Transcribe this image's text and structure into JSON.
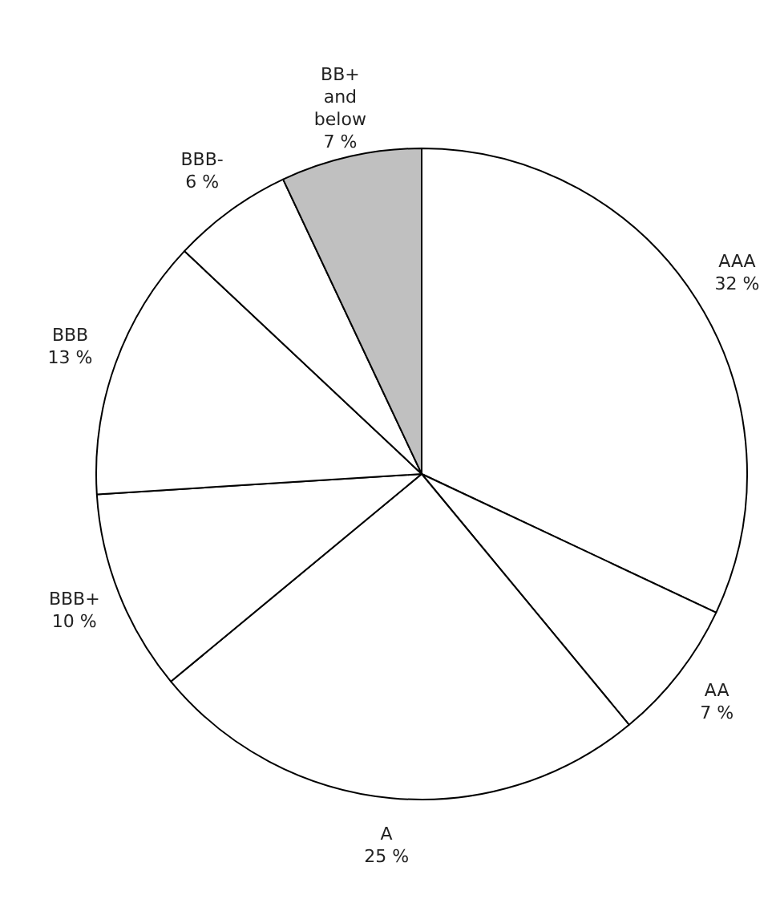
{
  "chart_data": {
    "type": "pie",
    "categories": [
      "AAA",
      "AA",
      "A",
      "BBB+",
      "BBB",
      "BBB-",
      "BB+ and below"
    ],
    "values": [
      32,
      7,
      25,
      10,
      13,
      6,
      7
    ],
    "colors": [
      "#ffffff",
      "#ffffff",
      "#ffffff",
      "#ffffff",
      "#ffffff",
      "#ffffff",
      "#c0c0c0"
    ],
    "value_labels": [
      "32 %",
      "7 %",
      "25 %",
      "10 %",
      "13 %",
      "6 %",
      "7 %"
    ],
    "legend": false
  }
}
